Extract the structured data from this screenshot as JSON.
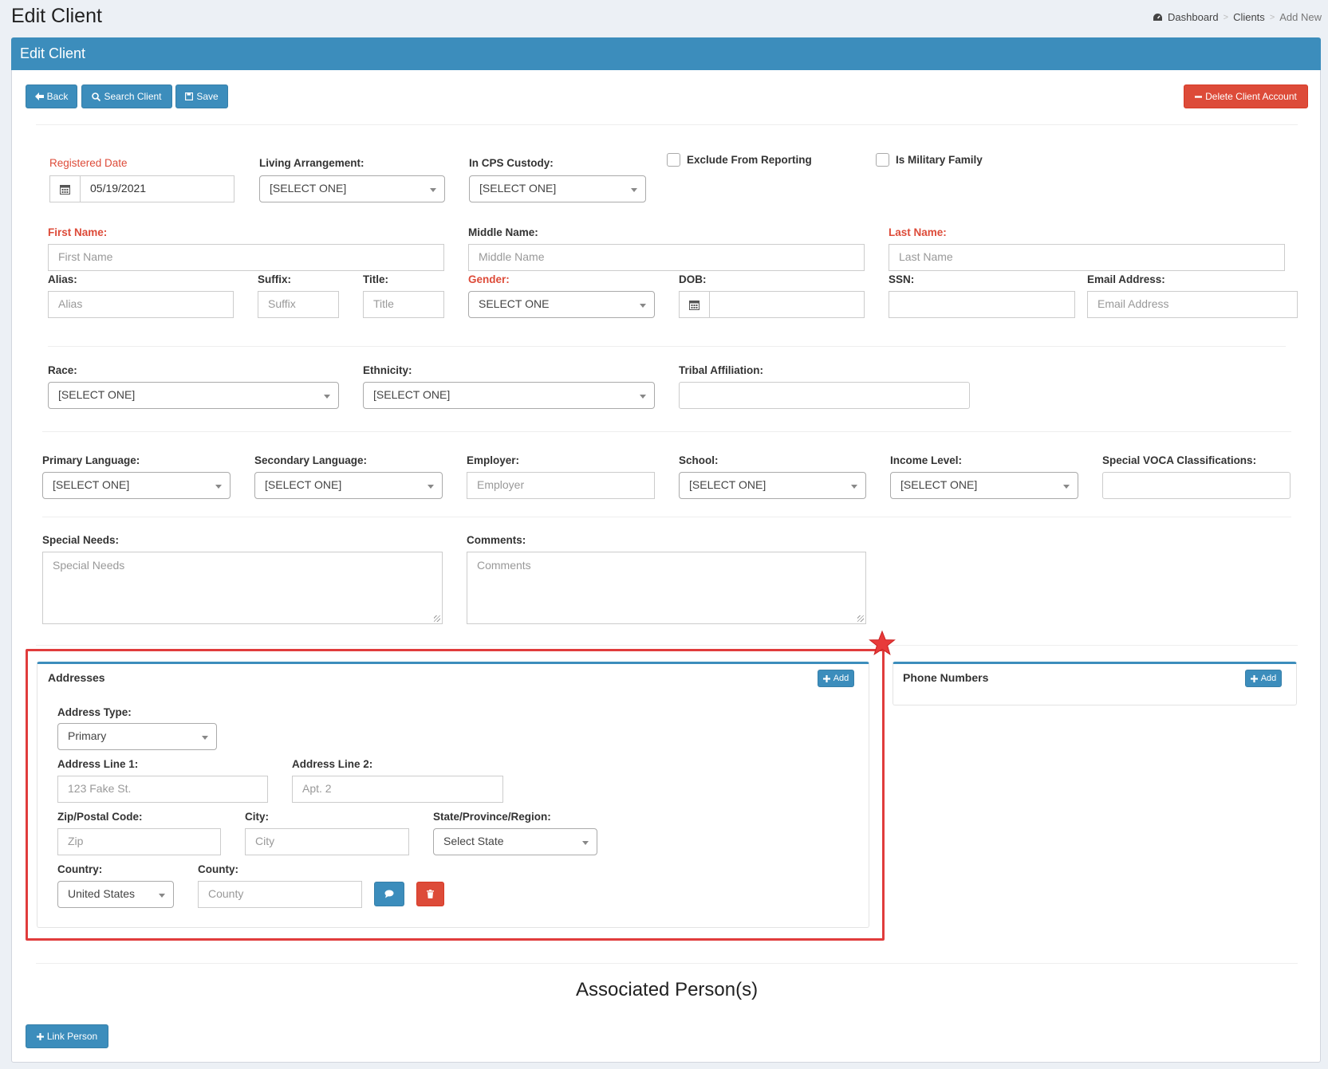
{
  "page": {
    "title": "Edit Client",
    "breadcrumb": [
      "Dashboard",
      "Clients",
      "Add New"
    ]
  },
  "panel": {
    "title": "Edit Client"
  },
  "toolbar": {
    "back": "Back",
    "search": "Search Client",
    "save": "Save",
    "delete": "Delete Client Account"
  },
  "form": {
    "registered_date": {
      "label": "Registered Date",
      "value": "05/19/2021"
    },
    "living_arrangement": {
      "label": "Living Arrangement:",
      "value": "[SELECT ONE]"
    },
    "cps_custody": {
      "label": "In CPS Custody:",
      "value": "[SELECT ONE]"
    },
    "exclude_reporting": {
      "label": "Exclude From Reporting",
      "checked": false
    },
    "military_family": {
      "label": "Is Military Family",
      "checked": false
    },
    "first_name": {
      "label": "First Name:",
      "placeholder": "First Name"
    },
    "middle_name": {
      "label": "Middle Name:",
      "placeholder": "Middle Name"
    },
    "last_name": {
      "label": "Last Name:",
      "placeholder": "Last Name"
    },
    "alias": {
      "label": "Alias:",
      "placeholder": "Alias"
    },
    "suffix": {
      "label": "Suffix:",
      "placeholder": "Suffix"
    },
    "title": {
      "label": "Title:",
      "placeholder": "Title"
    },
    "gender": {
      "label": "Gender:",
      "value": "SELECT ONE"
    },
    "dob": {
      "label": "DOB:",
      "value": ""
    },
    "ssn": {
      "label": "SSN:",
      "value": ""
    },
    "email": {
      "label": "Email Address:",
      "placeholder": "Email Address"
    },
    "race": {
      "label": "Race:",
      "value": "[SELECT ONE]"
    },
    "ethnicity": {
      "label": "Ethnicity:",
      "value": "[SELECT ONE]"
    },
    "tribal": {
      "label": "Tribal Affiliation:",
      "value": ""
    },
    "primary_language": {
      "label": "Primary Language:",
      "value": "[SELECT ONE]"
    },
    "secondary_language": {
      "label": "Secondary Language:",
      "value": "[SELECT ONE]"
    },
    "employer": {
      "label": "Employer:",
      "placeholder": "Employer"
    },
    "school": {
      "label": "School:",
      "value": "[SELECT ONE]"
    },
    "income": {
      "label": "Income Level:",
      "value": "[SELECT ONE]"
    },
    "voca": {
      "label": "Special VOCA Classifications:",
      "value": ""
    },
    "special_needs": {
      "label": "Special Needs:",
      "placeholder": "Special Needs"
    },
    "comments": {
      "label": "Comments:",
      "placeholder": "Comments"
    }
  },
  "addresses": {
    "title": "Addresses",
    "add": "Add",
    "address_type": {
      "label": "Address Type:",
      "value": "Primary"
    },
    "line1": {
      "label": "Address Line 1:",
      "placeholder": "123 Fake St."
    },
    "line2": {
      "label": "Address Line 2:",
      "placeholder": "Apt. 2"
    },
    "zip": {
      "label": "Zip/Postal Code:",
      "placeholder": "Zip"
    },
    "city": {
      "label": "City:",
      "placeholder": "City"
    },
    "state": {
      "label": "State/Province/Region:",
      "value": "Select State"
    },
    "country": {
      "label": "Country:",
      "value": "United States"
    },
    "county": {
      "label": "County:",
      "placeholder": "County"
    }
  },
  "phones": {
    "title": "Phone Numbers",
    "add": "Add"
  },
  "associated": {
    "title": "Associated Person(s)",
    "link": "Link Person"
  },
  "colors": {
    "primary": "#3c8dbc",
    "danger": "#dd4b39",
    "highlight": "#e03c3c"
  }
}
